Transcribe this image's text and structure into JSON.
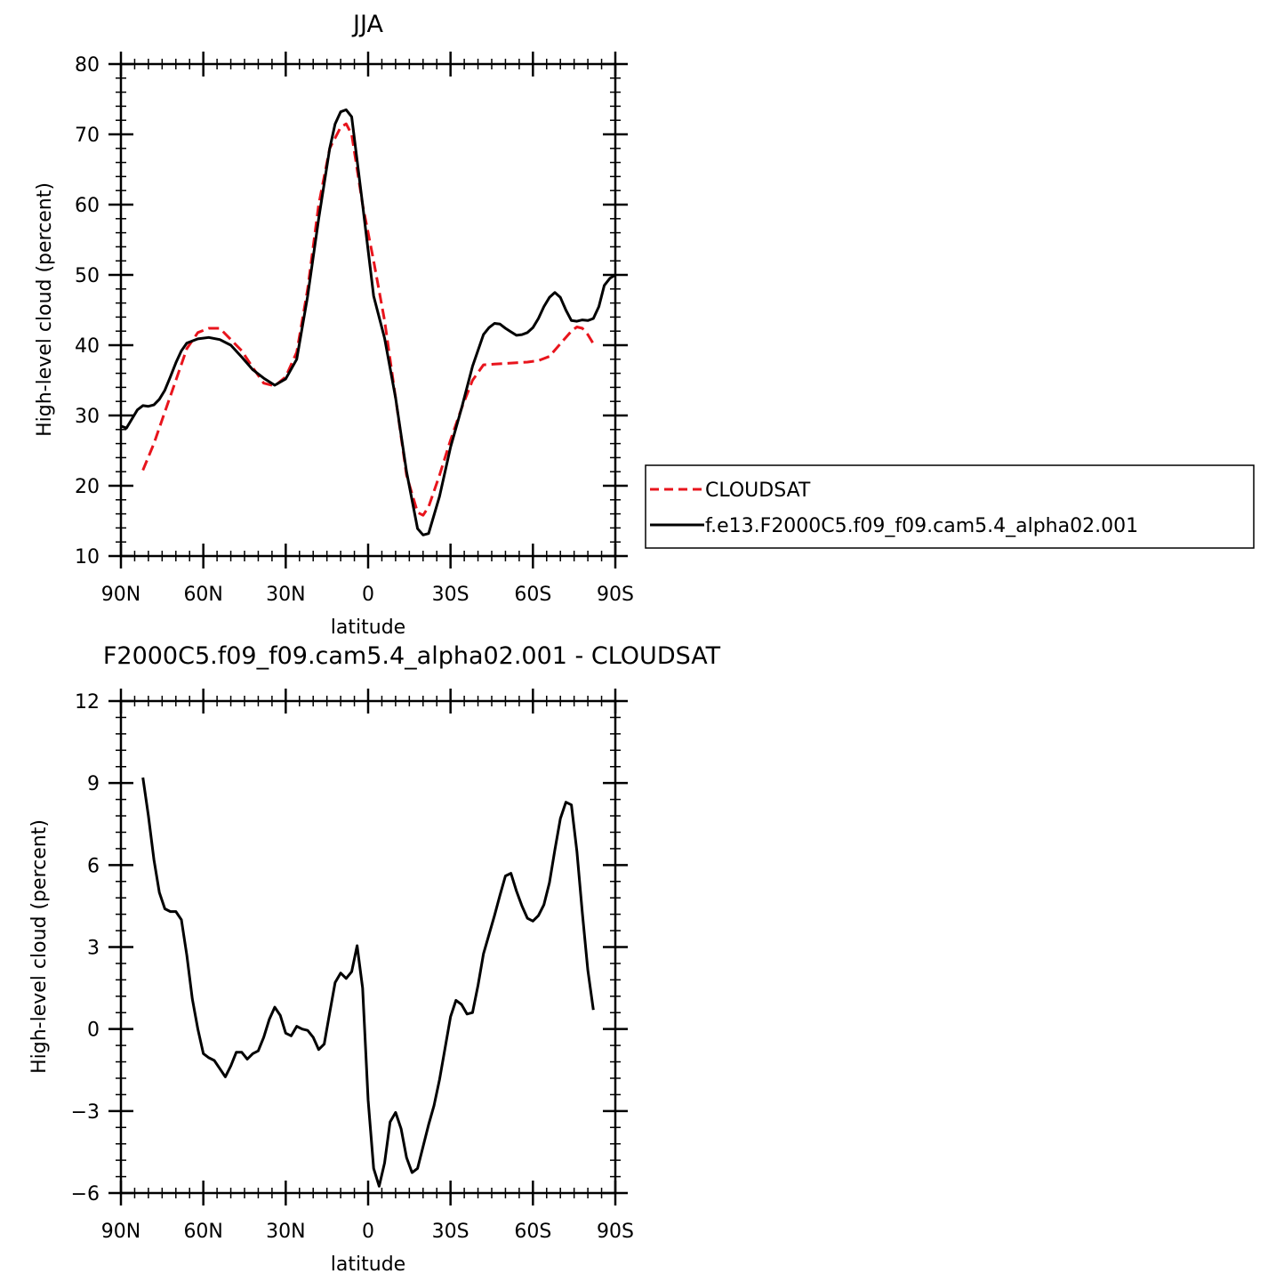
{
  "chart_data": [
    {
      "type": "line",
      "title": "JJA",
      "xlabel": "latitude",
      "ylabel": "High-level cloud (percent)",
      "xlim": [
        90,
        -90
      ],
      "ylim": [
        10,
        80
      ],
      "x_ticks": [
        {
          "value": 90,
          "label": "90N"
        },
        {
          "value": 60,
          "label": "60N"
        },
        {
          "value": 30,
          "label": "30N"
        },
        {
          "value": 0,
          "label": "0"
        },
        {
          "value": -30,
          "label": "30S"
        },
        {
          "value": -60,
          "label": "60S"
        },
        {
          "value": -90,
          "label": "90S"
        }
      ],
      "y_ticks": [
        {
          "value": 10,
          "label": "10"
        },
        {
          "value": 20,
          "label": "20"
        },
        {
          "value": 30,
          "label": "30"
        },
        {
          "value": 40,
          "label": "40"
        },
        {
          "value": 50,
          "label": "50"
        },
        {
          "value": 60,
          "label": "60"
        },
        {
          "value": 70,
          "label": "70"
        },
        {
          "value": 80,
          "label": "80"
        }
      ],
      "grid": false,
      "legend_position": "right",
      "series": [
        {
          "name": "CLOUDSAT",
          "color": "#e8141c",
          "dash": "dashed",
          "x": [
            82,
            78,
            74,
            70,
            66,
            62,
            58,
            54,
            50,
            46,
            42,
            38,
            34,
            30,
            26,
            22,
            18,
            14,
            10,
            8,
            6,
            2,
            -2,
            -6,
            -10,
            -14,
            -18,
            -20,
            -22,
            -26,
            -30,
            -34,
            -38,
            -42,
            -46,
            -50,
            -54,
            -58,
            -62,
            -66,
            -70,
            -74,
            -76,
            -78,
            -80,
            -82
          ],
          "y": [
            22.2,
            26,
            30.5,
            35,
            39.5,
            41.8,
            42.4,
            42.4,
            40.8,
            39.2,
            36.8,
            34.6,
            34.2,
            35.5,
            39,
            48,
            60,
            68,
            71,
            71.5,
            70,
            60,
            52,
            43.5,
            32.5,
            21.5,
            16.2,
            15.8,
            17,
            21.5,
            26.5,
            31,
            35,
            37.2,
            37.3,
            37.4,
            37.5,
            37.6,
            37.8,
            38.4,
            40.2,
            42,
            42.6,
            42.4,
            41.5,
            40.2
          ]
        },
        {
          "name": "f.e13.F2000C5.f09_f09.cam5.4_alpha02.001",
          "color": "#000000",
          "dash": "solid",
          "x": [
            90,
            88,
            86,
            84,
            82,
            80,
            78,
            76,
            74,
            72,
            70,
            68,
            66,
            62,
            58,
            54,
            50,
            46,
            42,
            38,
            34,
            30,
            26,
            22,
            18,
            14,
            12,
            10,
            8,
            6,
            2,
            -2,
            -6,
            -10,
            -14,
            -18,
            -20,
            -22,
            -26,
            -30,
            -34,
            -38,
            -42,
            -44,
            -46,
            -48,
            -50,
            -52,
            -54,
            -56,
            -58,
            -60,
            -62,
            -64,
            -66,
            -68,
            -70,
            -72,
            -74,
            -76,
            -78,
            -80,
            -82,
            -84,
            -86,
            -88,
            -90
          ],
          "y": [
            28.5,
            28.2,
            29.5,
            30.8,
            31.4,
            31.3,
            31.5,
            32.3,
            33.6,
            35.5,
            37.5,
            39.2,
            40.3,
            40.9,
            41.1,
            40.8,
            40,
            38.3,
            36.5,
            35.3,
            34.3,
            35.2,
            38,
            47,
            58,
            68,
            71.5,
            73.2,
            73.5,
            72.5,
            60,
            47,
            41,
            32.5,
            22,
            13.9,
            13,
            13.2,
            18.5,
            25.5,
            31,
            37,
            41.5,
            42.5,
            43.1,
            43,
            42.4,
            41.9,
            41.4,
            41.5,
            41.8,
            42.5,
            43.8,
            45.5,
            46.8,
            47.5,
            46.8,
            45,
            43.5,
            43.4,
            43.6,
            43.5,
            43.8,
            45.5,
            48.5,
            49.5,
            50
          ]
        }
      ]
    },
    {
      "type": "line",
      "title": "F2000C5.f09_f09.cam5.4_alpha02.001 - CLOUDSAT",
      "xlabel": "latitude",
      "ylabel": "High-level cloud (percent)",
      "xlim": [
        90,
        -90
      ],
      "ylim": [
        -6,
        12
      ],
      "x_ticks": [
        {
          "value": 90,
          "label": "90N"
        },
        {
          "value": 60,
          "label": "60N"
        },
        {
          "value": 30,
          "label": "30N"
        },
        {
          "value": 0,
          "label": "0"
        },
        {
          "value": -30,
          "label": "30S"
        },
        {
          "value": -60,
          "label": "60S"
        },
        {
          "value": -90,
          "label": "90S"
        }
      ],
      "y_ticks": [
        {
          "value": -6,
          "label": "−6"
        },
        {
          "value": -3,
          "label": "−3"
        },
        {
          "value": 0,
          "label": "0"
        },
        {
          "value": 3,
          "label": "3"
        },
        {
          "value": 6,
          "label": "6"
        },
        {
          "value": 9,
          "label": "9"
        },
        {
          "value": 12,
          "label": "12"
        }
      ],
      "grid": false,
      "series": [
        {
          "color": "#000000",
          "dash": "solid",
          "x": [
            82,
            80,
            78,
            76,
            74,
            72,
            70,
            68,
            66,
            64,
            62,
            60,
            58,
            56,
            54,
            52,
            50,
            48,
            46,
            44,
            42,
            40,
            38,
            36,
            34,
            32,
            30,
            28,
            26,
            24,
            22,
            20,
            18,
            16,
            14,
            12,
            10,
            8,
            6,
            4,
            2,
            0,
            -2,
            -4,
            -6,
            -8,
            -10,
            -12,
            -14,
            -16,
            -18,
            -20,
            -22,
            -24,
            -26,
            -28,
            -30,
            -32,
            -34,
            -36,
            -38,
            -40,
            -42,
            -44,
            -46,
            -48,
            -50,
            -52,
            -54,
            -56,
            -58,
            -60,
            -62,
            -64,
            -66,
            -68,
            -70,
            -72,
            -74,
            -76,
            -78,
            -80,
            -82
          ],
          "y": [
            9.2,
            7.8,
            6.2,
            5,
            4.4,
            4.3,
            4.3,
            4,
            2.7,
            1.1,
            0,
            -0.9,
            -1.05,
            -1.15,
            -1.45,
            -1.75,
            -1.35,
            -0.85,
            -0.85,
            -1.1,
            -0.9,
            -0.8,
            -0.3,
            0.35,
            0.8,
            0.5,
            -0.15,
            -0.25,
            0.1,
            0,
            -0.05,
            -0.3,
            -0.75,
            -0.55,
            0.6,
            1.7,
            2.05,
            1.85,
            2.1,
            3.05,
            1.5,
            -2.6,
            -5.1,
            -5.75,
            -4.9,
            -3.4,
            -3.05,
            -3.65,
            -4.7,
            -5.25,
            -5.1,
            -4.3,
            -3.5,
            -2.8,
            -1.85,
            -0.7,
            0.45,
            1.05,
            0.9,
            0.55,
            0.6,
            1.6,
            2.75,
            3.45,
            4.15,
            4.9,
            5.6,
            5.7,
            5.05,
            4.5,
            4.05,
            3.95,
            4.15,
            4.55,
            5.35,
            6.55,
            7.7,
            8.3,
            8.2,
            6.5,
            4.25,
            2.15,
            0.7
          ]
        }
      ]
    }
  ]
}
